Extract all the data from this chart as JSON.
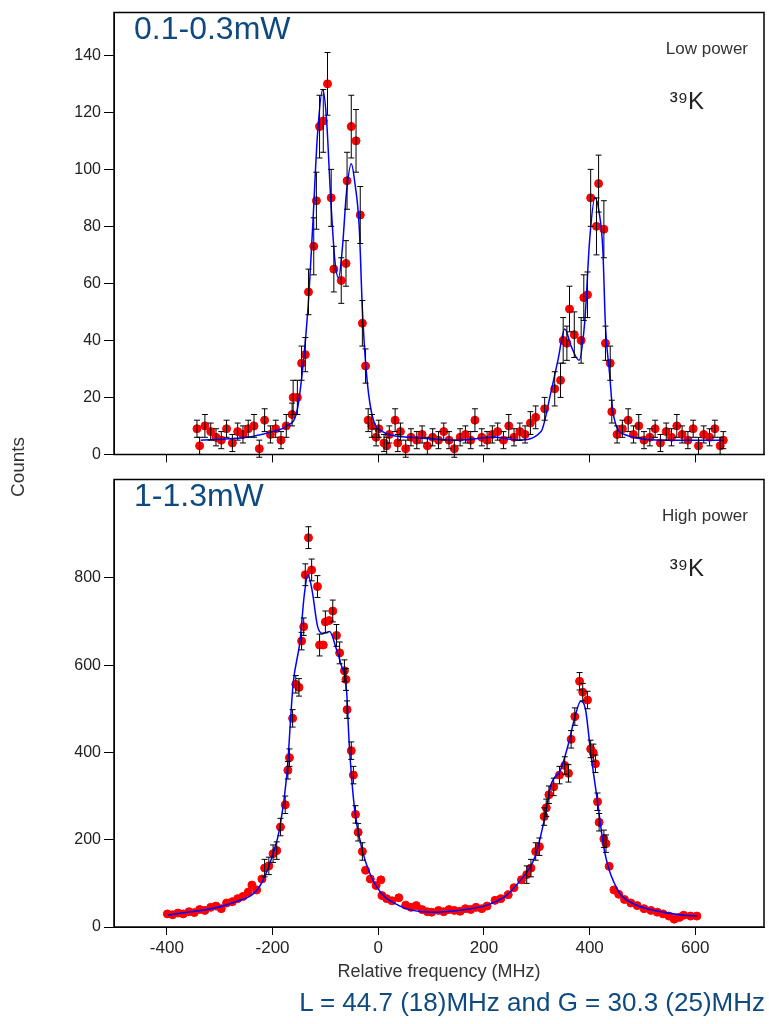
{
  "chart_data": [
    {
      "type": "scatter",
      "ylabel": "Counts",
      "xlim": [
        -500,
        730
      ],
      "xticks": [
        -400,
        -200,
        0,
        200,
        400,
        600
      ],
      "ylim": [
        0,
        155
      ],
      "yticks": [
        0,
        20,
        40,
        60,
        80,
        100,
        120,
        140
      ],
      "tick_labels": "y",
      "grid": false,
      "annotations": [
        "0.1-0.3mW",
        "Low power",
        "³⁹K"
      ],
      "series": [
        {
          "type": "scatter",
          "marker": "circle",
          "color": "#ff0000",
          "x": [
            -343,
            -338,
            -328,
            -317,
            -307,
            -297,
            -287,
            -276,
            -266,
            -256,
            -246,
            -235,
            -225,
            -215,
            -204,
            -194,
            -184,
            -174,
            -163,
            -161,
            -153,
            -145,
            -138,
            -132,
            -122,
            -117,
            -111,
            -104,
            -96,
            -89,
            -84,
            -70,
            -61,
            -59,
            -51,
            -42,
            -34,
            -30,
            -24,
            -19,
            -12,
            -4,
            1,
            11,
            16,
            21,
            32,
            37,
            42,
            52,
            62,
            73,
            83,
            93,
            103,
            114,
            124,
            134,
            144,
            155,
            165,
            175,
            183,
            196,
            206,
            216,
            226,
            237,
            247,
            257,
            268,
            278,
            288,
            298,
            315,
            334,
            345,
            350,
            357,
            362,
            371,
            384,
            389,
            396,
            402,
            413,
            417,
            427,
            430,
            439,
            442,
            452,
            462,
            473,
            483,
            493,
            503,
            514,
            524,
            534,
            545,
            555,
            565,
            575,
            586,
            596,
            606,
            616,
            627,
            637,
            647,
            653
          ],
          "values": [
            9,
            3,
            10,
            8,
            6,
            5,
            9,
            4,
            8,
            7,
            9,
            10,
            2,
            12,
            7,
            9,
            5,
            10,
            14,
            20,
            20,
            32,
            35,
            57,
            73,
            89,
            115,
            117,
            130,
            90,
            65,
            61,
            67,
            96,
            115,
            110,
            84,
            46,
            31,
            12,
            10,
            6,
            9,
            4,
            3,
            7,
            12,
            4,
            8,
            2,
            6,
            5,
            7,
            3,
            6,
            5,
            8,
            5,
            2,
            6,
            7,
            5,
            12,
            6,
            5,
            7,
            8,
            5,
            10,
            6,
            8,
            7,
            11,
            13,
            16,
            23,
            26,
            40,
            39,
            51,
            42,
            40,
            55,
            56,
            90,
            80,
            95,
            79,
            39,
            32,
            15,
            7,
            9,
            12,
            7,
            10,
            5,
            6,
            9,
            4,
            8,
            6,
            10,
            7,
            5,
            9,
            3,
            7,
            6,
            9,
            3,
            5
          ],
          "errors": [
            3,
            3,
            4,
            3,
            3,
            3,
            3,
            3,
            3,
            3,
            3,
            4,
            3,
            4,
            3,
            3,
            3,
            4,
            4,
            6,
            6,
            6,
            6,
            8,
            10,
            10,
            11,
            11,
            11,
            10,
            8,
            8,
            8,
            10,
            11,
            11,
            10,
            8,
            6,
            4,
            4,
            3,
            3,
            3,
            3,
            3,
            4,
            3,
            3,
            3,
            3,
            3,
            3,
            3,
            3,
            3,
            3,
            3,
            3,
            3,
            3,
            3,
            4,
            3,
            3,
            3,
            3,
            3,
            4,
            3,
            3,
            3,
            4,
            4,
            4,
            6,
            6,
            8,
            6,
            8,
            8,
            8,
            8,
            8,
            10,
            10,
            10,
            10,
            6,
            6,
            4,
            3,
            3,
            4,
            3,
            4,
            3,
            3,
            3,
            3,
            3,
            3,
            4,
            3,
            3,
            3,
            3,
            3,
            3,
            3,
            3,
            3
          ]
        },
        {
          "type": "line",
          "color": "#0000ff",
          "x": [
            -336,
            -250,
            -200,
            -173,
            -154,
            -143,
            -133,
            -124,
            -115,
            -105,
            -98,
            -90,
            -82,
            -75,
            -68,
            -60,
            -51,
            -44,
            -36,
            -30,
            -23,
            -13,
            8,
            60,
            150,
            220,
            265,
            308,
            327,
            340,
            353,
            365,
            380,
            391,
            400,
            410,
            418,
            425,
            430,
            438,
            444,
            466,
            550,
            654
          ],
          "values": [
            5,
            6,
            8,
            10,
            15,
            30,
            51,
            80,
            112,
            128,
            118,
            90,
            68,
            62,
            72,
            92,
            102,
            95,
            80,
            51,
            30,
            15,
            8,
            6,
            5,
            6,
            5,
            8,
            22,
            33,
            44,
            38,
            33,
            47,
            75,
            90,
            85,
            72,
            45,
            28,
            15,
            7,
            5,
            5
          ]
        }
      ]
    },
    {
      "type": "scatter",
      "xlabel": "Relative frequency (MHz)",
      "xlim": [
        -500,
        730
      ],
      "xticks": [
        -400,
        -200,
        0,
        200,
        400,
        600
      ],
      "ylim": [
        0,
        1025
      ],
      "yticks": [
        0,
        200,
        400,
        600,
        800
      ],
      "grid": false,
      "annotations": [
        "1-1.3mW",
        "High power",
        "³⁹K",
        "L = 44.7 (18)MHz and G = 30.3 (25)MHz"
      ],
      "series": [
        {
          "type": "scatter",
          "marker": "circle",
          "color": "#ff0000",
          "x": [
            -399,
            -389,
            -379,
            -369,
            -358,
            -348,
            -338,
            -328,
            -317,
            -307,
            -297,
            -287,
            -276,
            -266,
            -256,
            -246,
            -239,
            -230,
            -220,
            -215,
            -207,
            -199,
            -192,
            -185,
            -176,
            -171,
            -168,
            -162,
            -156,
            -150,
            -145,
            -141,
            -138,
            -132,
            -126,
            -115,
            -111,
            -104,
            -100,
            -93,
            -86,
            -79,
            -73,
            -64,
            -61,
            -59,
            -51,
            -47,
            -43,
            -38,
            -30,
            -24,
            -15,
            -4,
            5,
            7,
            16,
            26,
            39,
            52,
            62,
            72,
            83,
            93,
            101,
            114,
            124,
            134,
            144,
            155,
            165,
            175,
            185,
            196,
            206,
            221,
            232,
            246,
            257,
            271,
            281,
            289,
            298,
            305,
            314,
            318,
            323,
            332,
            343,
            353,
            360,
            365,
            372,
            381,
            387,
            396,
            402,
            407,
            411,
            415,
            418,
            427,
            431,
            437,
            446,
            455,
            466,
            478,
            490,
            503,
            516,
            528,
            539,
            550,
            560,
            570,
            578,
            591,
            603
          ],
          "values": [
            30,
            28,
            32,
            30,
            35,
            33,
            40,
            38,
            45,
            48,
            42,
            55,
            58,
            65,
            70,
            80,
            96,
            85,
            110,
            135,
            140,
            168,
            175,
            229,
            280,
            359,
            388,
            478,
            556,
            549,
            655,
            688,
            807,
            892,
            818,
            780,
            646,
            646,
            699,
            702,
            724,
            668,
            628,
            587,
            567,
            498,
            404,
            348,
            258,
            217,
            173,
            130,
            110,
            95,
            108,
            72,
            65,
            60,
            67,
            50,
            45,
            49,
            40,
            35,
            34,
            38,
            35,
            40,
            38,
            36,
            42,
            40,
            45,
            42,
            48,
            61,
            65,
            74,
            90,
            108,
            120,
            135,
            173,
            184,
            253,
            273,
            303,
            321,
            348,
            370,
            352,
            430,
            482,
            563,
            538,
            520,
            408,
            399,
            374,
            287,
            240,
            202,
            191,
            139,
            85,
            75,
            63,
            55,
            49,
            42,
            38,
            34,
            30,
            25,
            18,
            22,
            27,
            25,
            25
          ],
          "errors": [
            null,
            null,
            null,
            null,
            null,
            null,
            null,
            null,
            null,
            null,
            null,
            null,
            null,
            null,
            null,
            null,
            null,
            null,
            null,
            20,
            20,
            20,
            20,
            20,
            20,
            20,
            20,
            20,
            20,
            20,
            20,
            20,
            25,
            25,
            25,
            25,
            25,
            null,
            25,
            null,
            25,
            25,
            25,
            25,
            25,
            20,
            20,
            20,
            20,
            20,
            20,
            null,
            null,
            null,
            null,
            null,
            null,
            null,
            null,
            null,
            null,
            null,
            null,
            null,
            null,
            null,
            null,
            null,
            null,
            null,
            null,
            null,
            null,
            null,
            null,
            null,
            null,
            null,
            null,
            null,
            20,
            20,
            20,
            20,
            20,
            20,
            20,
            20,
            20,
            20,
            20,
            20,
            20,
            20,
            20,
            20,
            20,
            20,
            20,
            20,
            20,
            20,
            20,
            null,
            null,
            null,
            null,
            null,
            null,
            null,
            null,
            null,
            null,
            null,
            null,
            null,
            null,
            null,
            null
          ]
        },
        {
          "type": "line",
          "color": "#0000ff",
          "x": [
            -398,
            -274,
            -224,
            -199,
            -186,
            -173,
            -161,
            -148,
            -140,
            -133,
            -125,
            -115,
            -105,
            -92,
            -80,
            -70,
            -60,
            -55,
            -45,
            -30,
            -4,
            39,
            101,
            150,
            203,
            240,
            265,
            297,
            315,
            327,
            345,
            360,
            372,
            383,
            392,
            402,
            415,
            428,
            453,
            480,
            515,
            578,
            603
          ],
          "values": [
            27,
            56,
            94,
            168,
            229,
            348,
            557,
            655,
            760,
            807,
            770,
            690,
            672,
            677,
            640,
            600,
            543,
            422,
            273,
            175,
            94,
            49,
            34,
            38,
            49,
            70,
            101,
            162,
            250,
            326,
            360,
            420,
            480,
            517,
            500,
            400,
            287,
            175,
            85,
            55,
            40,
            27,
            25
          ]
        }
      ]
    }
  ]
}
